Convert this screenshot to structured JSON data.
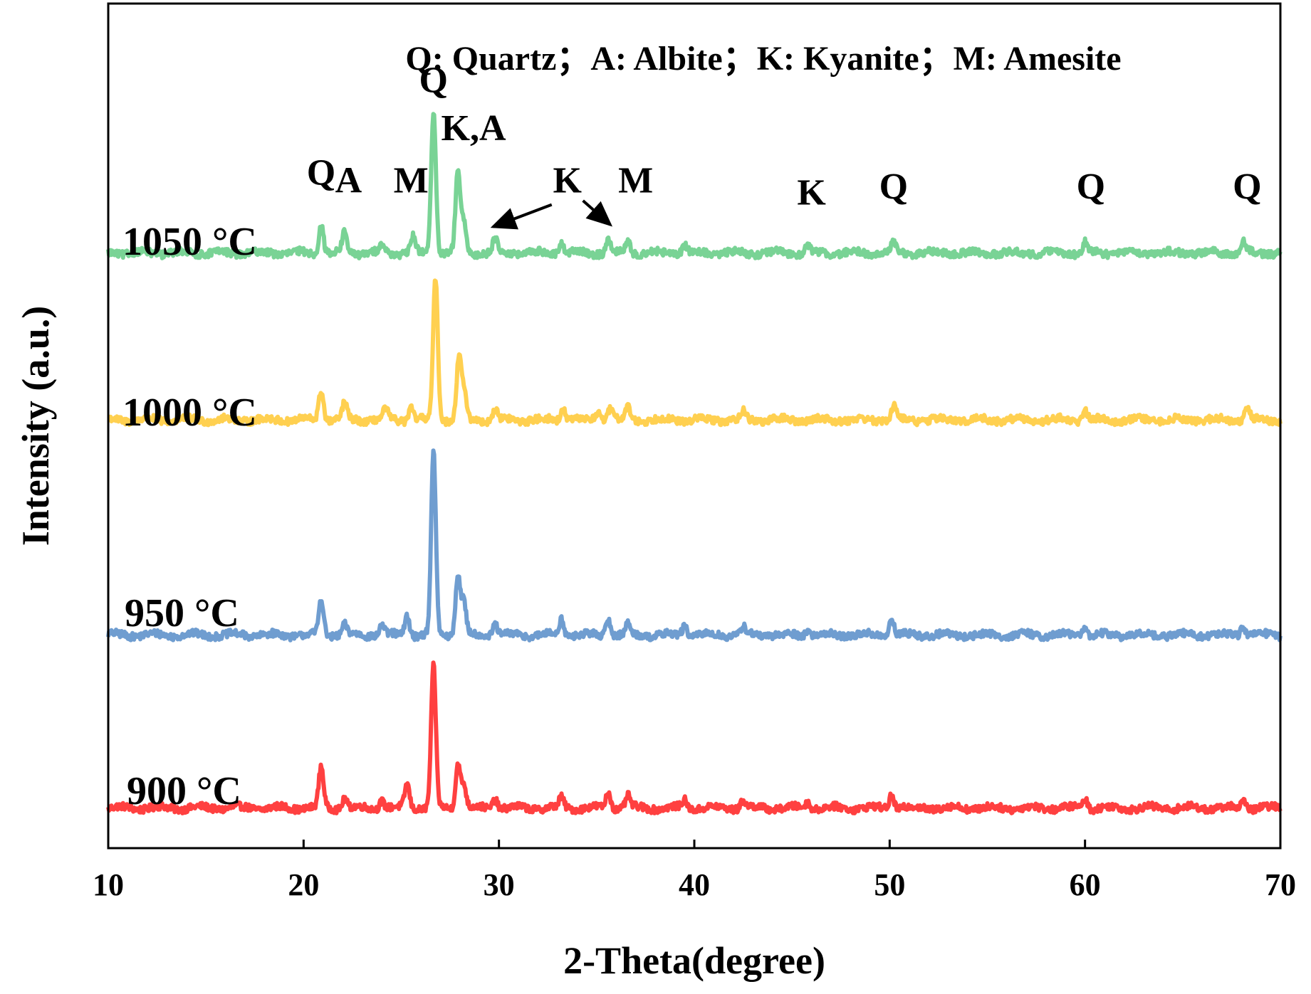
{
  "chart_data": {
    "type": "line",
    "title": "",
    "xlabel": "2-Theta(degree)",
    "ylabel": "Intensity (a.u.)",
    "xlim": [
      10,
      70
    ],
    "ylim": [
      0,
      4.2
    ],
    "x_ticks": [
      "10",
      "20",
      "30",
      "40",
      "50",
      "60",
      "70"
    ],
    "grid": false,
    "legend_text": "Q: Quartz；A: Albite；K: Kyanite；M: Amesite",
    "series": [
      {
        "name": "900 °C",
        "color": "#ff4040",
        "baseline": 0.2,
        "noise": 0.018,
        "peaks": [
          {
            "x": 20.9,
            "h": 0.2
          },
          {
            "x": 22.1,
            "h": 0.05
          },
          {
            "x": 24.0,
            "h": 0.04
          },
          {
            "x": 25.3,
            "h": 0.12
          },
          {
            "x": 26.65,
            "h": 0.7
          },
          {
            "x": 27.9,
            "h": 0.22
          },
          {
            "x": 28.2,
            "h": 0.12
          },
          {
            "x": 29.8,
            "h": 0.05
          },
          {
            "x": 33.2,
            "h": 0.05
          },
          {
            "x": 35.6,
            "h": 0.08
          },
          {
            "x": 36.6,
            "h": 0.06
          },
          {
            "x": 39.5,
            "h": 0.04
          },
          {
            "x": 42.5,
            "h": 0.04
          },
          {
            "x": 45.8,
            "h": 0.03
          },
          {
            "x": 50.1,
            "h": 0.07
          },
          {
            "x": 60.0,
            "h": 0.05
          },
          {
            "x": 68.1,
            "h": 0.04
          }
        ]
      },
      {
        "name": "950 °C",
        "color": "#6f9dd0",
        "baseline": 1.06,
        "noise": 0.018,
        "peaks": [
          {
            "x": 20.9,
            "h": 0.18
          },
          {
            "x": 22.1,
            "h": 0.05
          },
          {
            "x": 24.0,
            "h": 0.05
          },
          {
            "x": 25.3,
            "h": 0.1
          },
          {
            "x": 26.65,
            "h": 0.9
          },
          {
            "x": 27.9,
            "h": 0.3
          },
          {
            "x": 28.2,
            "h": 0.16
          },
          {
            "x": 29.8,
            "h": 0.06
          },
          {
            "x": 33.2,
            "h": 0.08
          },
          {
            "x": 35.6,
            "h": 0.08
          },
          {
            "x": 36.6,
            "h": 0.05
          },
          {
            "x": 39.5,
            "h": 0.05
          },
          {
            "x": 42.5,
            "h": 0.04
          },
          {
            "x": 45.8,
            "h": 0.03
          },
          {
            "x": 50.1,
            "h": 0.08
          },
          {
            "x": 60.0,
            "h": 0.04
          },
          {
            "x": 68.1,
            "h": 0.05
          }
        ]
      },
      {
        "name": "1000 °C",
        "color": "#ffd050",
        "baseline": 2.13,
        "noise": 0.018,
        "peaks": [
          {
            "x": 20.9,
            "h": 0.15
          },
          {
            "x": 22.1,
            "h": 0.08
          },
          {
            "x": 24.2,
            "h": 0.05
          },
          {
            "x": 25.5,
            "h": 0.06
          },
          {
            "x": 26.75,
            "h": 0.7
          },
          {
            "x": 27.95,
            "h": 0.3
          },
          {
            "x": 28.2,
            "h": 0.14
          },
          {
            "x": 29.8,
            "h": 0.05
          },
          {
            "x": 33.3,
            "h": 0.06
          },
          {
            "x": 35.1,
            "h": 0.05
          },
          {
            "x": 35.7,
            "h": 0.06
          },
          {
            "x": 36.6,
            "h": 0.06
          },
          {
            "x": 42.5,
            "h": 0.04
          },
          {
            "x": 50.2,
            "h": 0.07
          },
          {
            "x": 60.0,
            "h": 0.05
          },
          {
            "x": 68.3,
            "h": 0.06
          }
        ]
      },
      {
        "name": "1050 °C",
        "color": "#79d395",
        "baseline": 2.96,
        "noise": 0.018,
        "peaks": [
          {
            "x": 20.9,
            "h": 0.14
          },
          {
            "x": 22.1,
            "h": 0.1
          },
          {
            "x": 24.0,
            "h": 0.04
          },
          {
            "x": 25.6,
            "h": 0.08
          },
          {
            "x": 26.65,
            "h": 0.7
          },
          {
            "x": 27.9,
            "h": 0.4
          },
          {
            "x": 28.2,
            "h": 0.14
          },
          {
            "x": 29.8,
            "h": 0.07
          },
          {
            "x": 33.2,
            "h": 0.05
          },
          {
            "x": 35.6,
            "h": 0.06
          },
          {
            "x": 36.6,
            "h": 0.06
          },
          {
            "x": 39.5,
            "h": 0.04
          },
          {
            "x": 45.8,
            "h": 0.03
          },
          {
            "x": 50.2,
            "h": 0.05
          },
          {
            "x": 60.0,
            "h": 0.05
          },
          {
            "x": 68.1,
            "h": 0.05
          }
        ]
      }
    ],
    "annotations": [
      {
        "text": "Q",
        "x": 20.9,
        "y": 3.3
      },
      {
        "text": "A",
        "x": 22.3,
        "y": 3.26
      },
      {
        "text": "M",
        "x": 25.5,
        "y": 3.26
      },
      {
        "text": "Q",
        "x": 26.65,
        "y": 3.76
      },
      {
        "text": "K,A",
        "x": 28.7,
        "y": 3.52
      },
      {
        "text": "K",
        "x": 33.5,
        "y": 3.26
      },
      {
        "text": "M",
        "x": 37.0,
        "y": 3.26
      },
      {
        "text": "K",
        "x": 46.0,
        "y": 3.2
      },
      {
        "text": "Q",
        "x": 50.2,
        "y": 3.23
      },
      {
        "text": "Q",
        "x": 60.3,
        "y": 3.23
      },
      {
        "text": "Q",
        "x": 68.3,
        "y": 3.23
      }
    ],
    "arrows": [
      {
        "from": [
          32.7,
          3.2
        ],
        "to": [
          29.7,
          3.09
        ]
      },
      {
        "from": [
          34.3,
          3.22
        ],
        "to": [
          35.7,
          3.1
        ]
      }
    ]
  }
}
